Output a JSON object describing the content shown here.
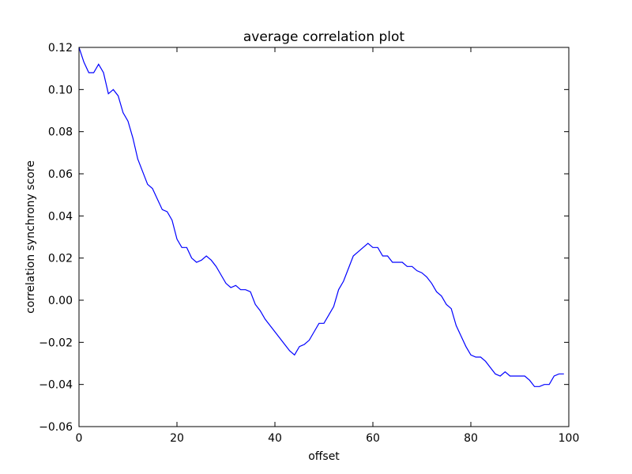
{
  "chart_data": {
    "type": "line",
    "title": "average correlation plot",
    "xlabel": "offset",
    "ylabel": "correlation synchrony score",
    "xlim": [
      0,
      100
    ],
    "ylim": [
      -0.06,
      0.12
    ],
    "x_ticks": [
      0,
      20,
      40,
      60,
      80,
      100
    ],
    "x_tick_labels": [
      "0",
      "20",
      "40",
      "60",
      "80",
      "100"
    ],
    "y_ticks": [
      -0.06,
      -0.04,
      -0.02,
      0.0,
      0.02,
      0.04,
      0.06,
      0.08,
      0.1,
      0.12
    ],
    "y_tick_labels": [
      "−0.06",
      "−0.04",
      "−0.02",
      "0.00",
      "0.02",
      "0.04",
      "0.06",
      "0.08",
      "0.10",
      "0.12"
    ],
    "grid": false,
    "line_color": "#0000ff",
    "series": [
      {
        "x": [
          0,
          1,
          2,
          3,
          4,
          5,
          6,
          7,
          8,
          9,
          10,
          11,
          12,
          13,
          14,
          15,
          16,
          17,
          18,
          19,
          20,
          21,
          22,
          23,
          24,
          25,
          26,
          27,
          28,
          29,
          30,
          31,
          32,
          33,
          34,
          35,
          36,
          37,
          38,
          39,
          40,
          41,
          42,
          43,
          44,
          45,
          46,
          47,
          48,
          49,
          50,
          51,
          52,
          53,
          54,
          55,
          56,
          57,
          58,
          59,
          60,
          61,
          62,
          63,
          64,
          65,
          66,
          67,
          68,
          69,
          70,
          71,
          72,
          73,
          74,
          75,
          76,
          77,
          78,
          79,
          80,
          81,
          82,
          83,
          84,
          85,
          86,
          87,
          88,
          89,
          90,
          91,
          92,
          93,
          94,
          95,
          96,
          97,
          98,
          99
        ],
        "values": [
          0.12,
          0.113,
          0.108,
          0.108,
          0.112,
          0.108,
          0.098,
          0.1,
          0.097,
          0.089,
          0.085,
          0.077,
          0.067,
          0.061,
          0.055,
          0.053,
          0.048,
          0.043,
          0.042,
          0.038,
          0.029,
          0.025,
          0.025,
          0.02,
          0.018,
          0.019,
          0.021,
          0.019,
          0.016,
          0.012,
          0.008,
          0.006,
          0.007,
          0.005,
          0.005,
          0.004,
          -0.002,
          -0.005,
          -0.009,
          -0.012,
          -0.015,
          -0.018,
          -0.021,
          -0.024,
          -0.026,
          -0.022,
          -0.021,
          -0.019,
          -0.015,
          -0.011,
          -0.011,
          -0.007,
          -0.003,
          0.005,
          0.009,
          0.015,
          0.021,
          0.023,
          0.025,
          0.027,
          0.025,
          0.025,
          0.021,
          0.021,
          0.018,
          0.018,
          0.018,
          0.016,
          0.016,
          0.014,
          0.013,
          0.011,
          0.008,
          0.004,
          0.002,
          -0.002,
          -0.004,
          -0.012,
          -0.017,
          -0.022,
          -0.026,
          -0.027,
          -0.027,
          -0.029,
          -0.032,
          -0.035,
          -0.036,
          -0.034,
          -0.036,
          -0.036,
          -0.036,
          -0.036,
          -0.038,
          -0.041,
          -0.041,
          -0.04,
          -0.04,
          -0.036,
          -0.035,
          -0.035
        ]
      }
    ]
  }
}
